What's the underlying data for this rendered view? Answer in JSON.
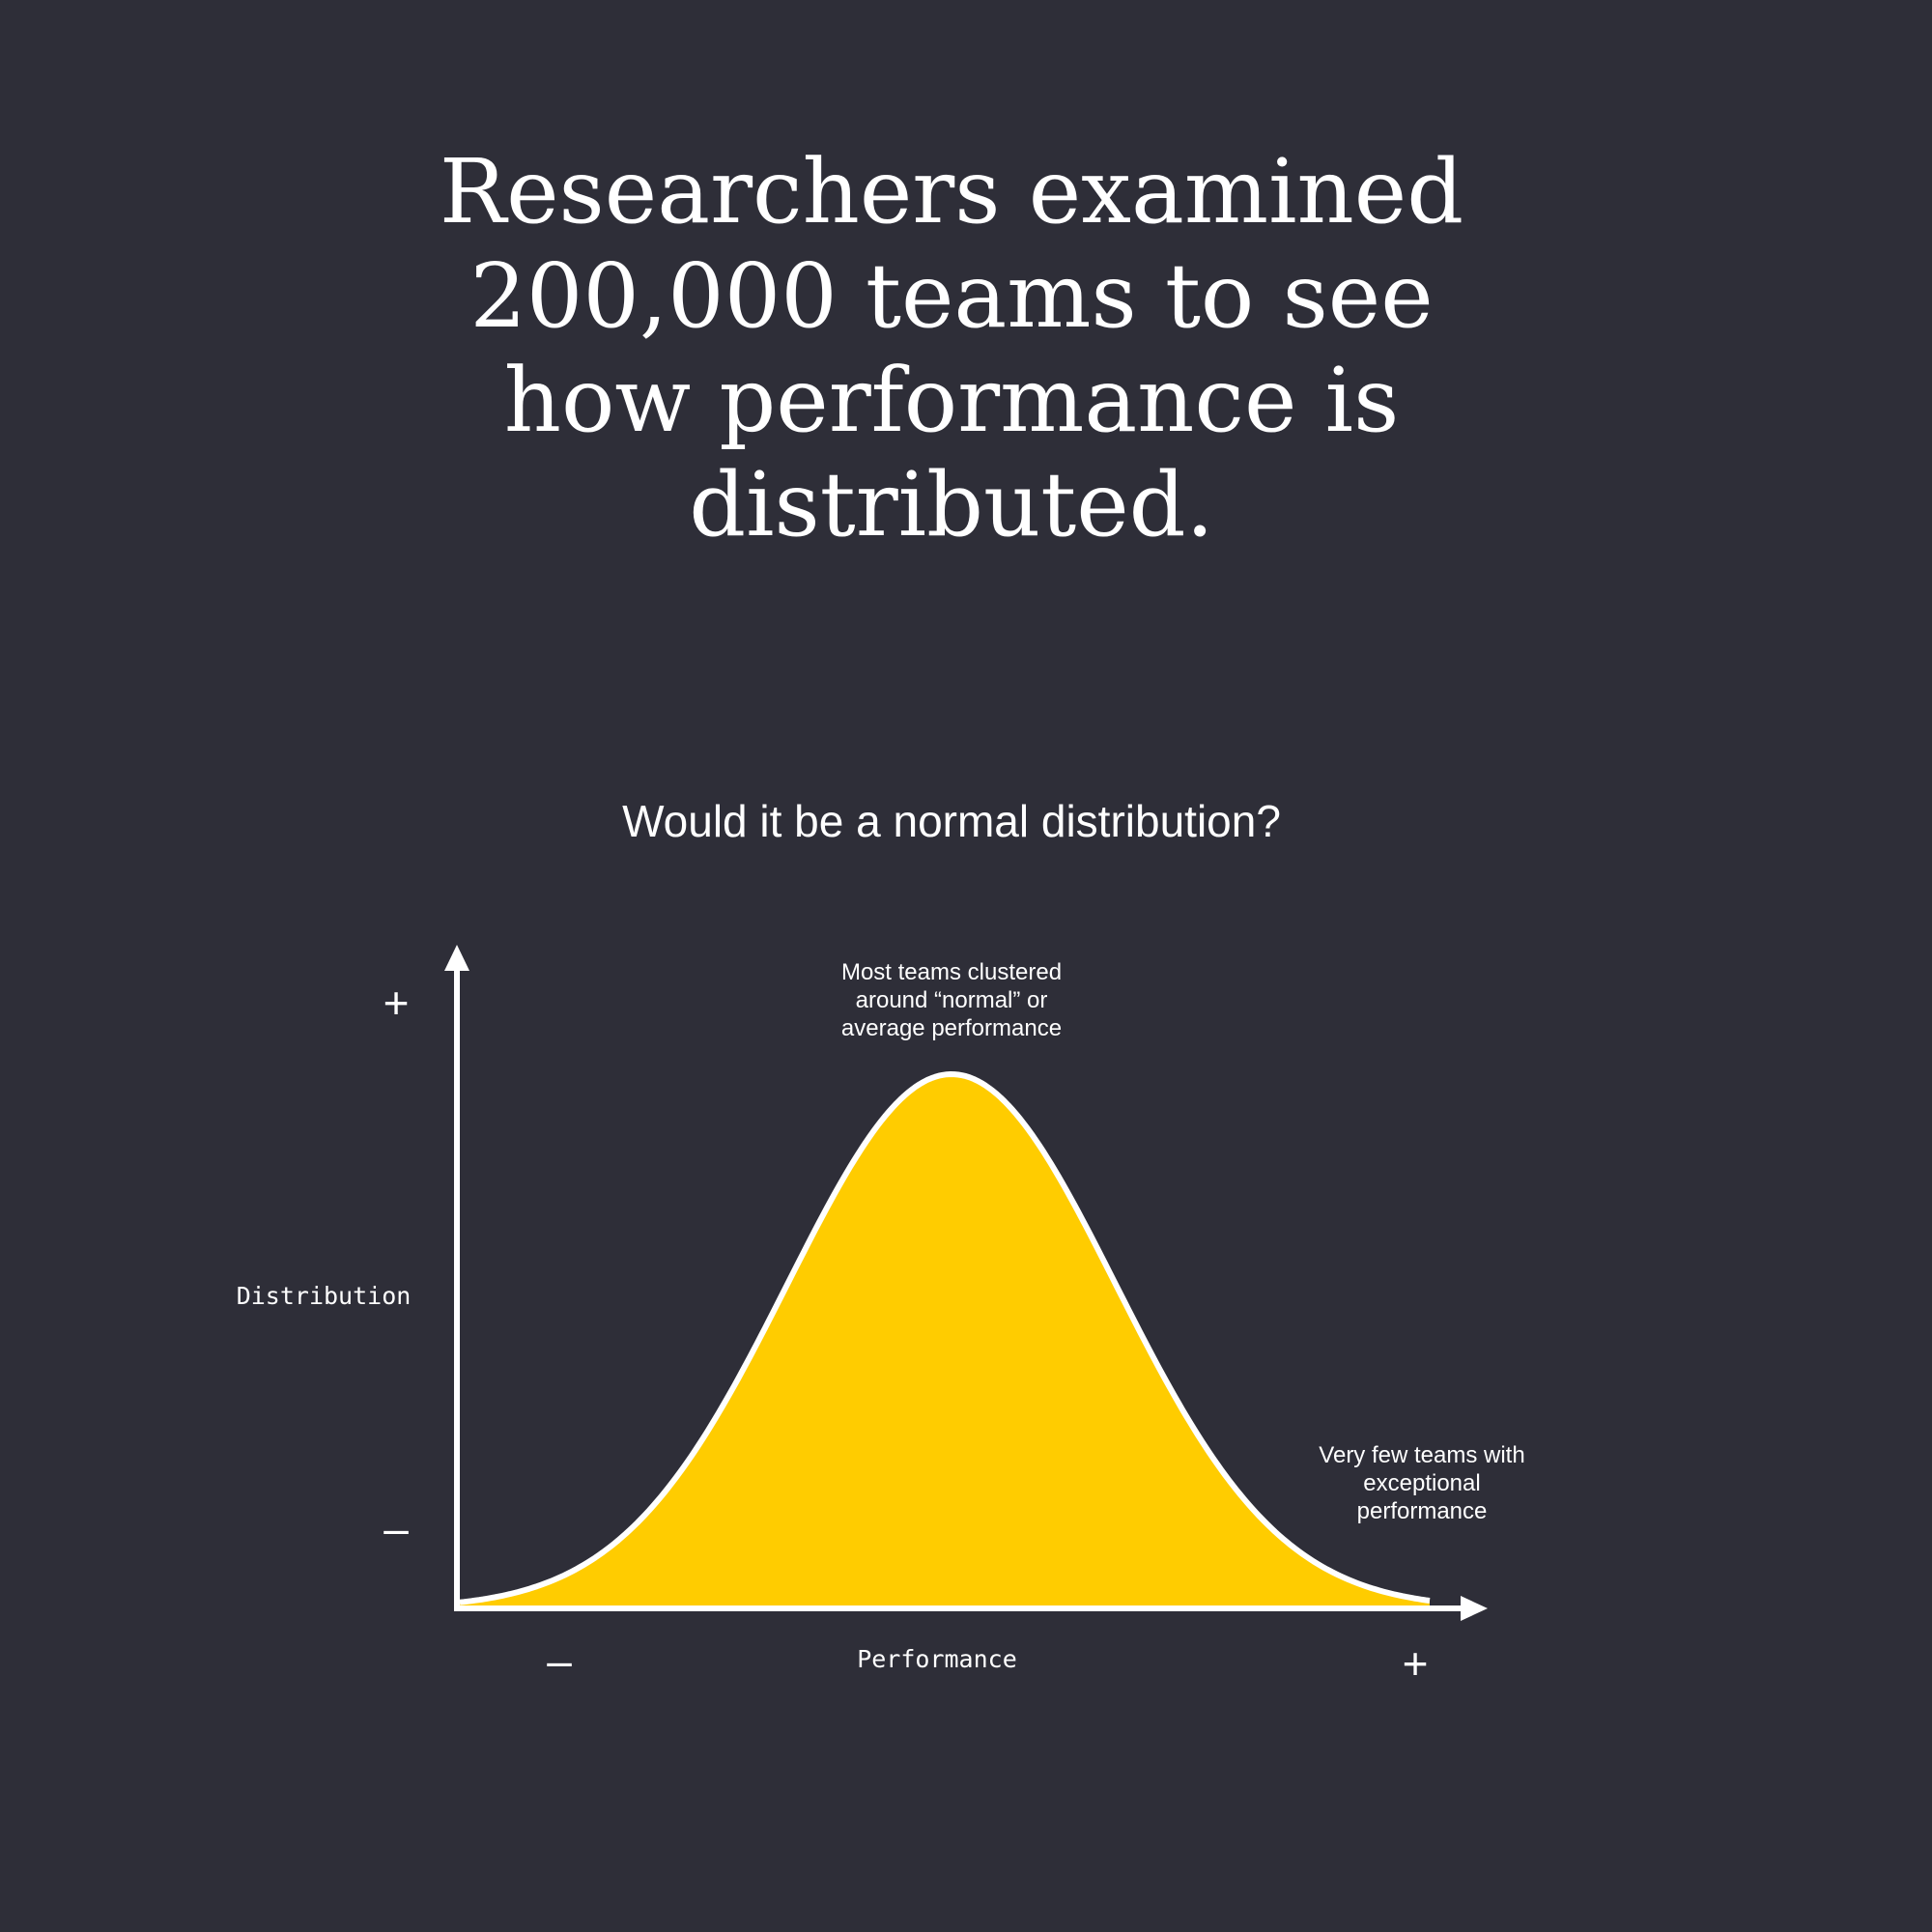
{
  "headline": {
    "lines": [
      "Researchers examined",
      "200,000 teams to see",
      "how performance is",
      "distributed."
    ]
  },
  "subtitle": "Would it be a normal distribution?",
  "colors": {
    "background": "#2e2e38",
    "text": "#ffffff",
    "fill": "#ffcc00",
    "stroke": "#ffffff"
  },
  "chart_data": {
    "type": "area",
    "distribution": "normal",
    "title": "",
    "xlabel": "Performance",
    "ylabel": "Distribution",
    "x_min_label": "–",
    "x_max_label": "+",
    "y_min_label": "–",
    "y_max_label": "+",
    "annotations": {
      "peak": [
        "Most teams clustered",
        "around “normal” or",
        "average performance"
      ],
      "tail": [
        "Very few teams with",
        "exceptional",
        "performance"
      ]
    }
  }
}
